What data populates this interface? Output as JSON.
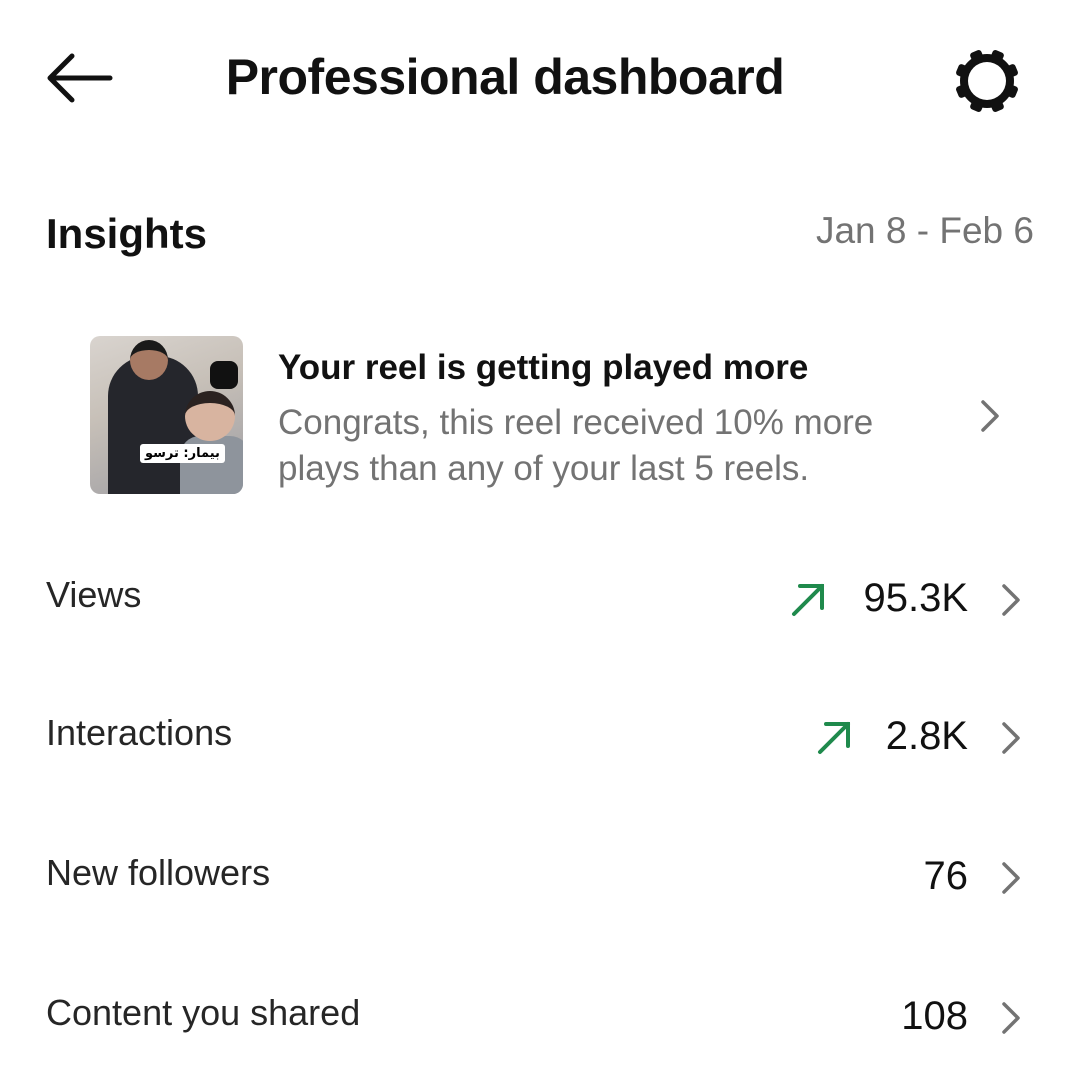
{
  "header": {
    "title": "Professional dashboard",
    "back_icon": "arrow-left-icon",
    "settings_icon": "gear-icon"
  },
  "insights": {
    "heading": "Insights",
    "date_range": "Jan 8 - Feb 6"
  },
  "card": {
    "title": "Your reel is getting played more",
    "subtitle": "Congrats, this reel received 10% more plays than any of your last 5 reels.",
    "thumbnail_caption": "بیمار: ترسو"
  },
  "colors": {
    "trend_up": "#1f8a4c",
    "secondary_text": "#737373"
  },
  "metrics": [
    {
      "label": "Views",
      "value": "95.3K",
      "trend": "up"
    },
    {
      "label": "Interactions",
      "value": "2.8K",
      "trend": "up"
    },
    {
      "label": "New followers",
      "value": "76",
      "trend": null
    },
    {
      "label": "Content you shared",
      "value": "108",
      "trend": null
    }
  ]
}
